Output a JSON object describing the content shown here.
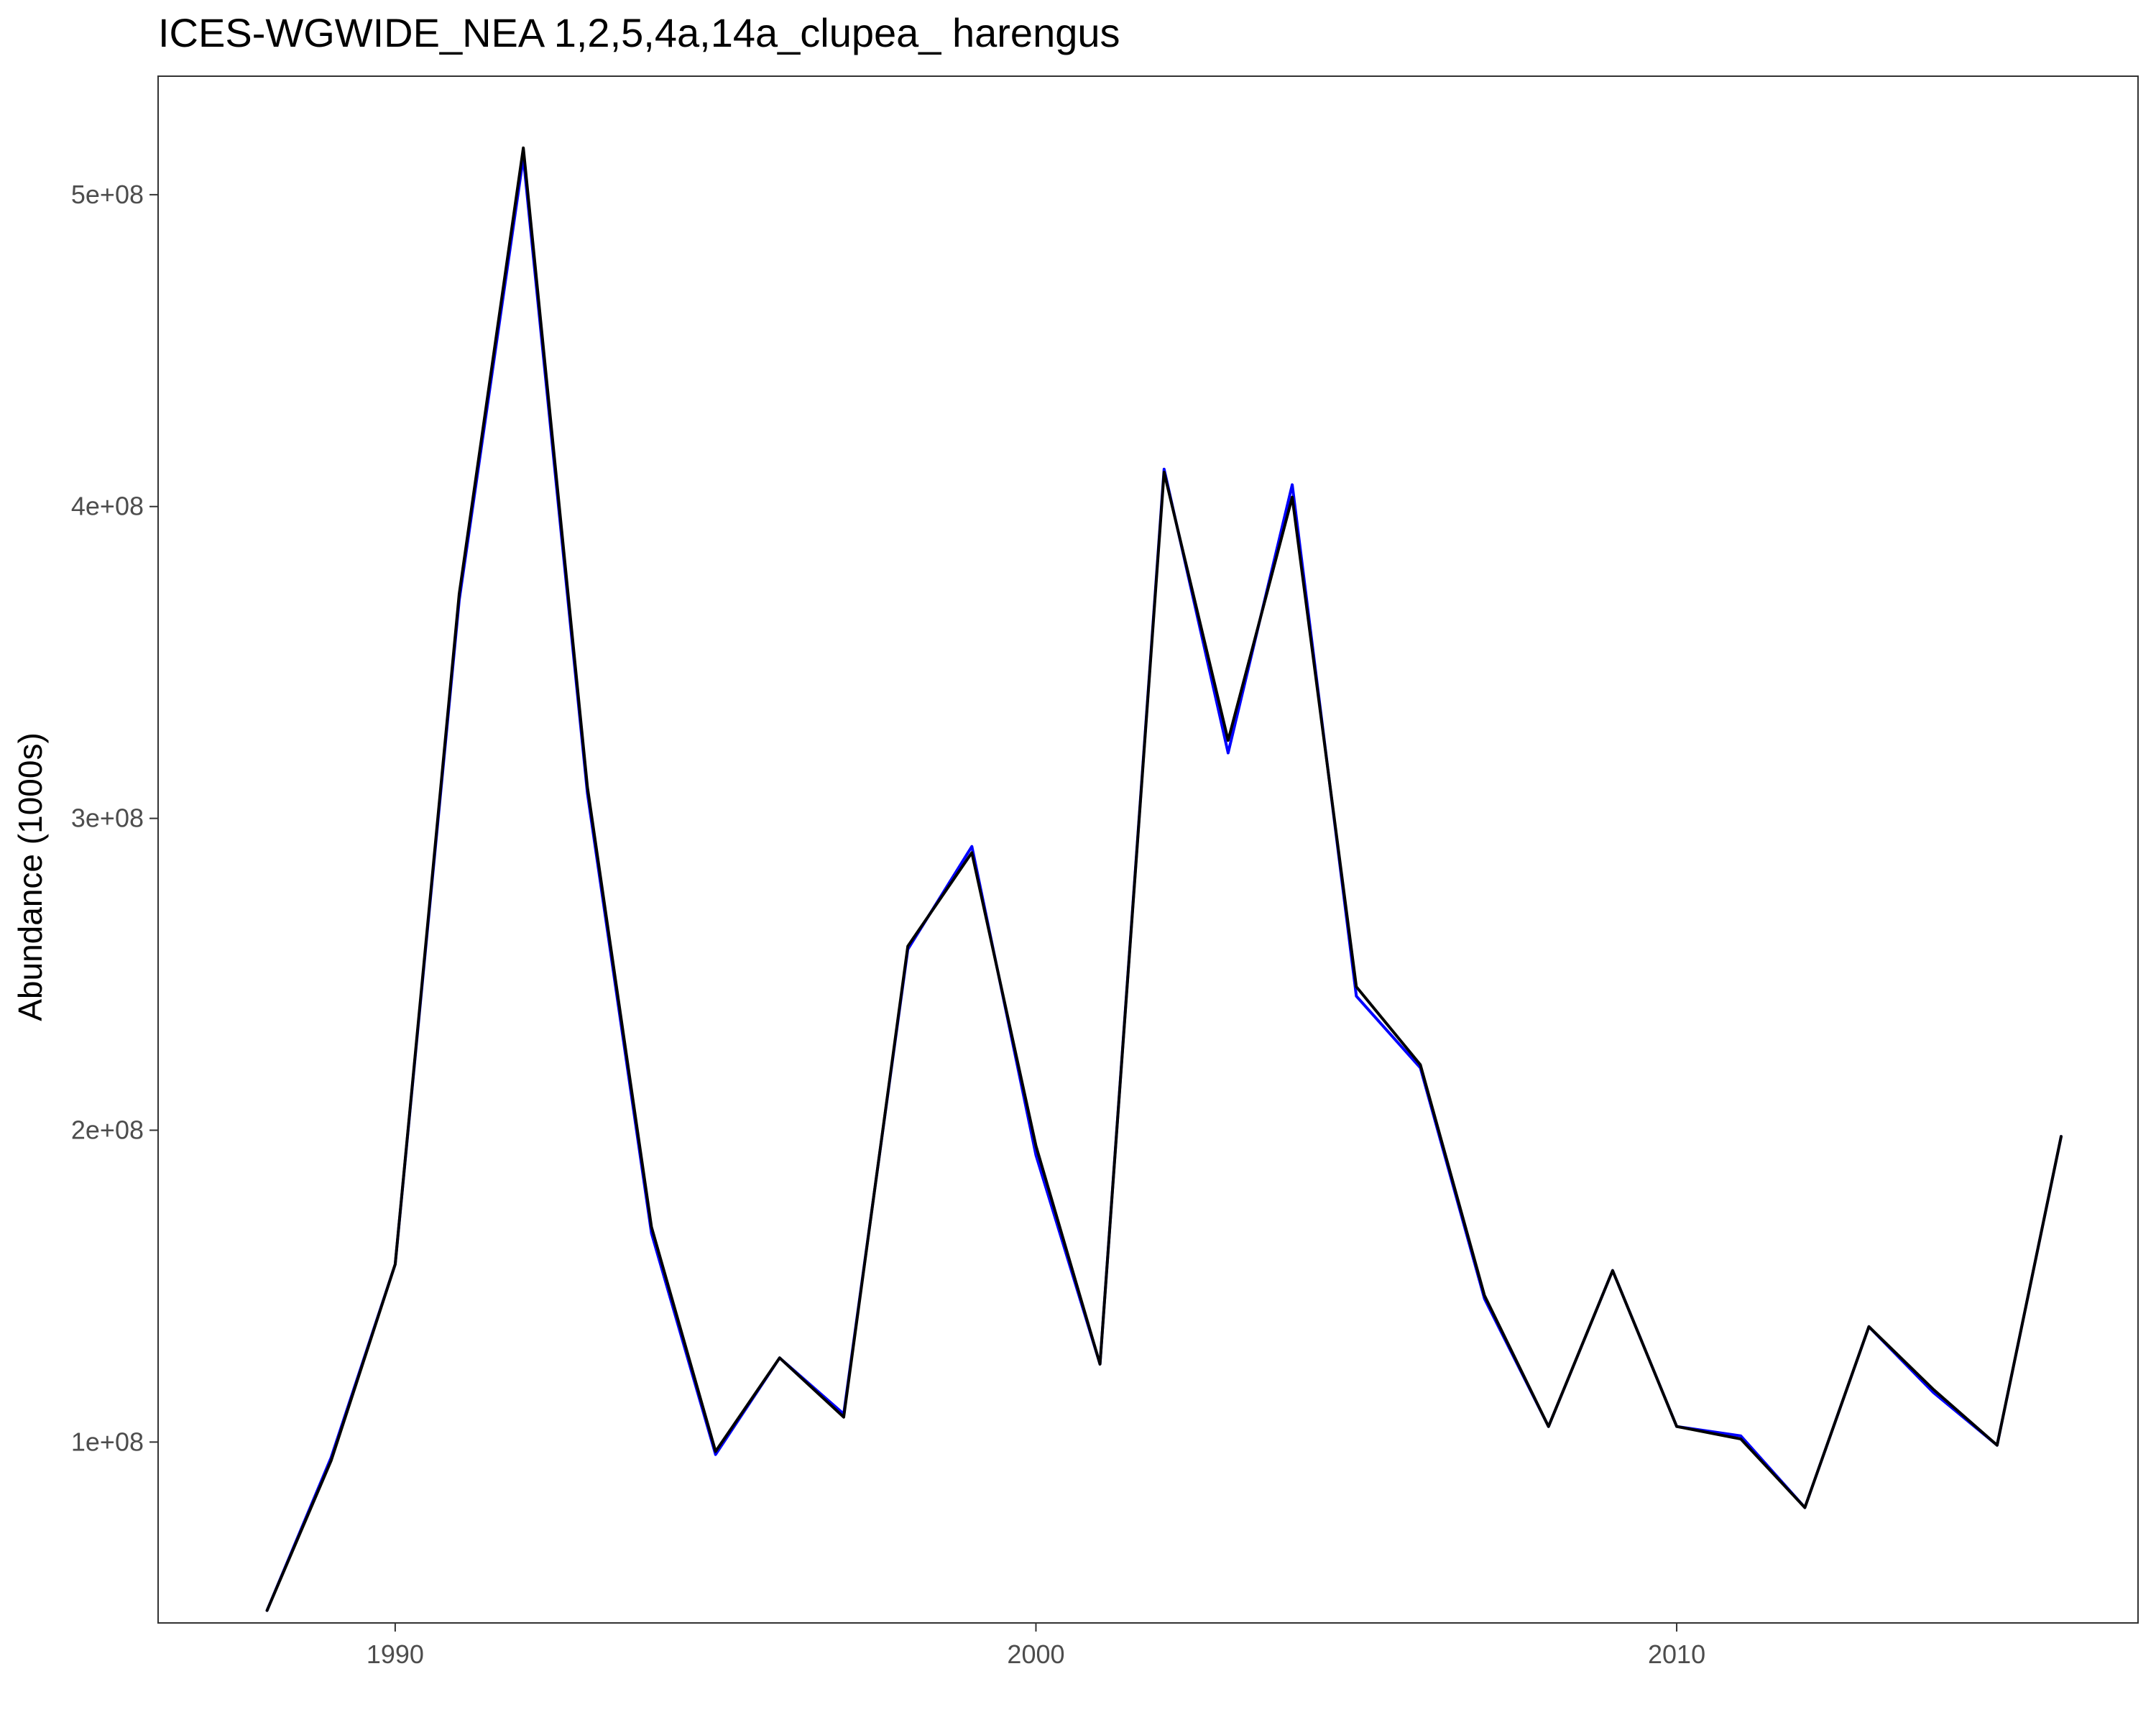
{
  "chart_data": {
    "type": "line",
    "title": "ICES-WGWIDE_NEA 1,2,5,4a,14a_clupea_ harengus",
    "xlabel": "",
    "ylabel": "Abundance (1000s)",
    "xlim": [
      1986.3,
      2017.2
    ],
    "ylim": [
      42000000,
      538000000
    ],
    "x_ticks": [
      1990,
      2000,
      2010
    ],
    "x_tick_labels": [
      "1990",
      "2000",
      "2010"
    ],
    "y_ticks": [
      100000000,
      200000000,
      300000000,
      400000000,
      500000000
    ],
    "y_tick_labels": [
      "1e+08",
      "2e+08",
      "3e+08",
      "4e+08",
      "5e+08"
    ],
    "grid": false,
    "legend": "none",
    "x": [
      1988,
      1989,
      1990,
      1991,
      1992,
      1993,
      1994,
      1995,
      1996,
      1997,
      1998,
      1999,
      2000,
      2001,
      2002,
      2003,
      2004,
      2005,
      2006,
      2007,
      2008,
      2009,
      2010,
      2011,
      2012,
      2013,
      2014,
      2015,
      2016
    ],
    "series": [
      {
        "color": "#0000ff",
        "values": [
          46000000,
          95000000,
          157000000,
          370000000,
          512000000,
          308000000,
          167000000,
          96000000,
          127000000,
          109000000,
          258000000,
          291000000,
          192000000,
          125000000,
          412000000,
          321000000,
          407000000,
          243000000,
          220000000,
          146000000,
          105000000,
          155000000,
          105000000,
          102000000,
          79000000,
          137000000,
          116000000,
          99000000,
          198000000
        ]
      },
      {
        "color": "#000000",
        "values": [
          46000000,
          94000000,
          157000000,
          372000000,
          515000000,
          310000000,
          169000000,
          97000000,
          127000000,
          108000000,
          259000000,
          289000000,
          195000000,
          125000000,
          411000000,
          325000000,
          403000000,
          246000000,
          221000000,
          147000000,
          105000000,
          155000000,
          105000000,
          101000000,
          79000000,
          137000000,
          117000000,
          99000000,
          198000000
        ]
      }
    ]
  }
}
